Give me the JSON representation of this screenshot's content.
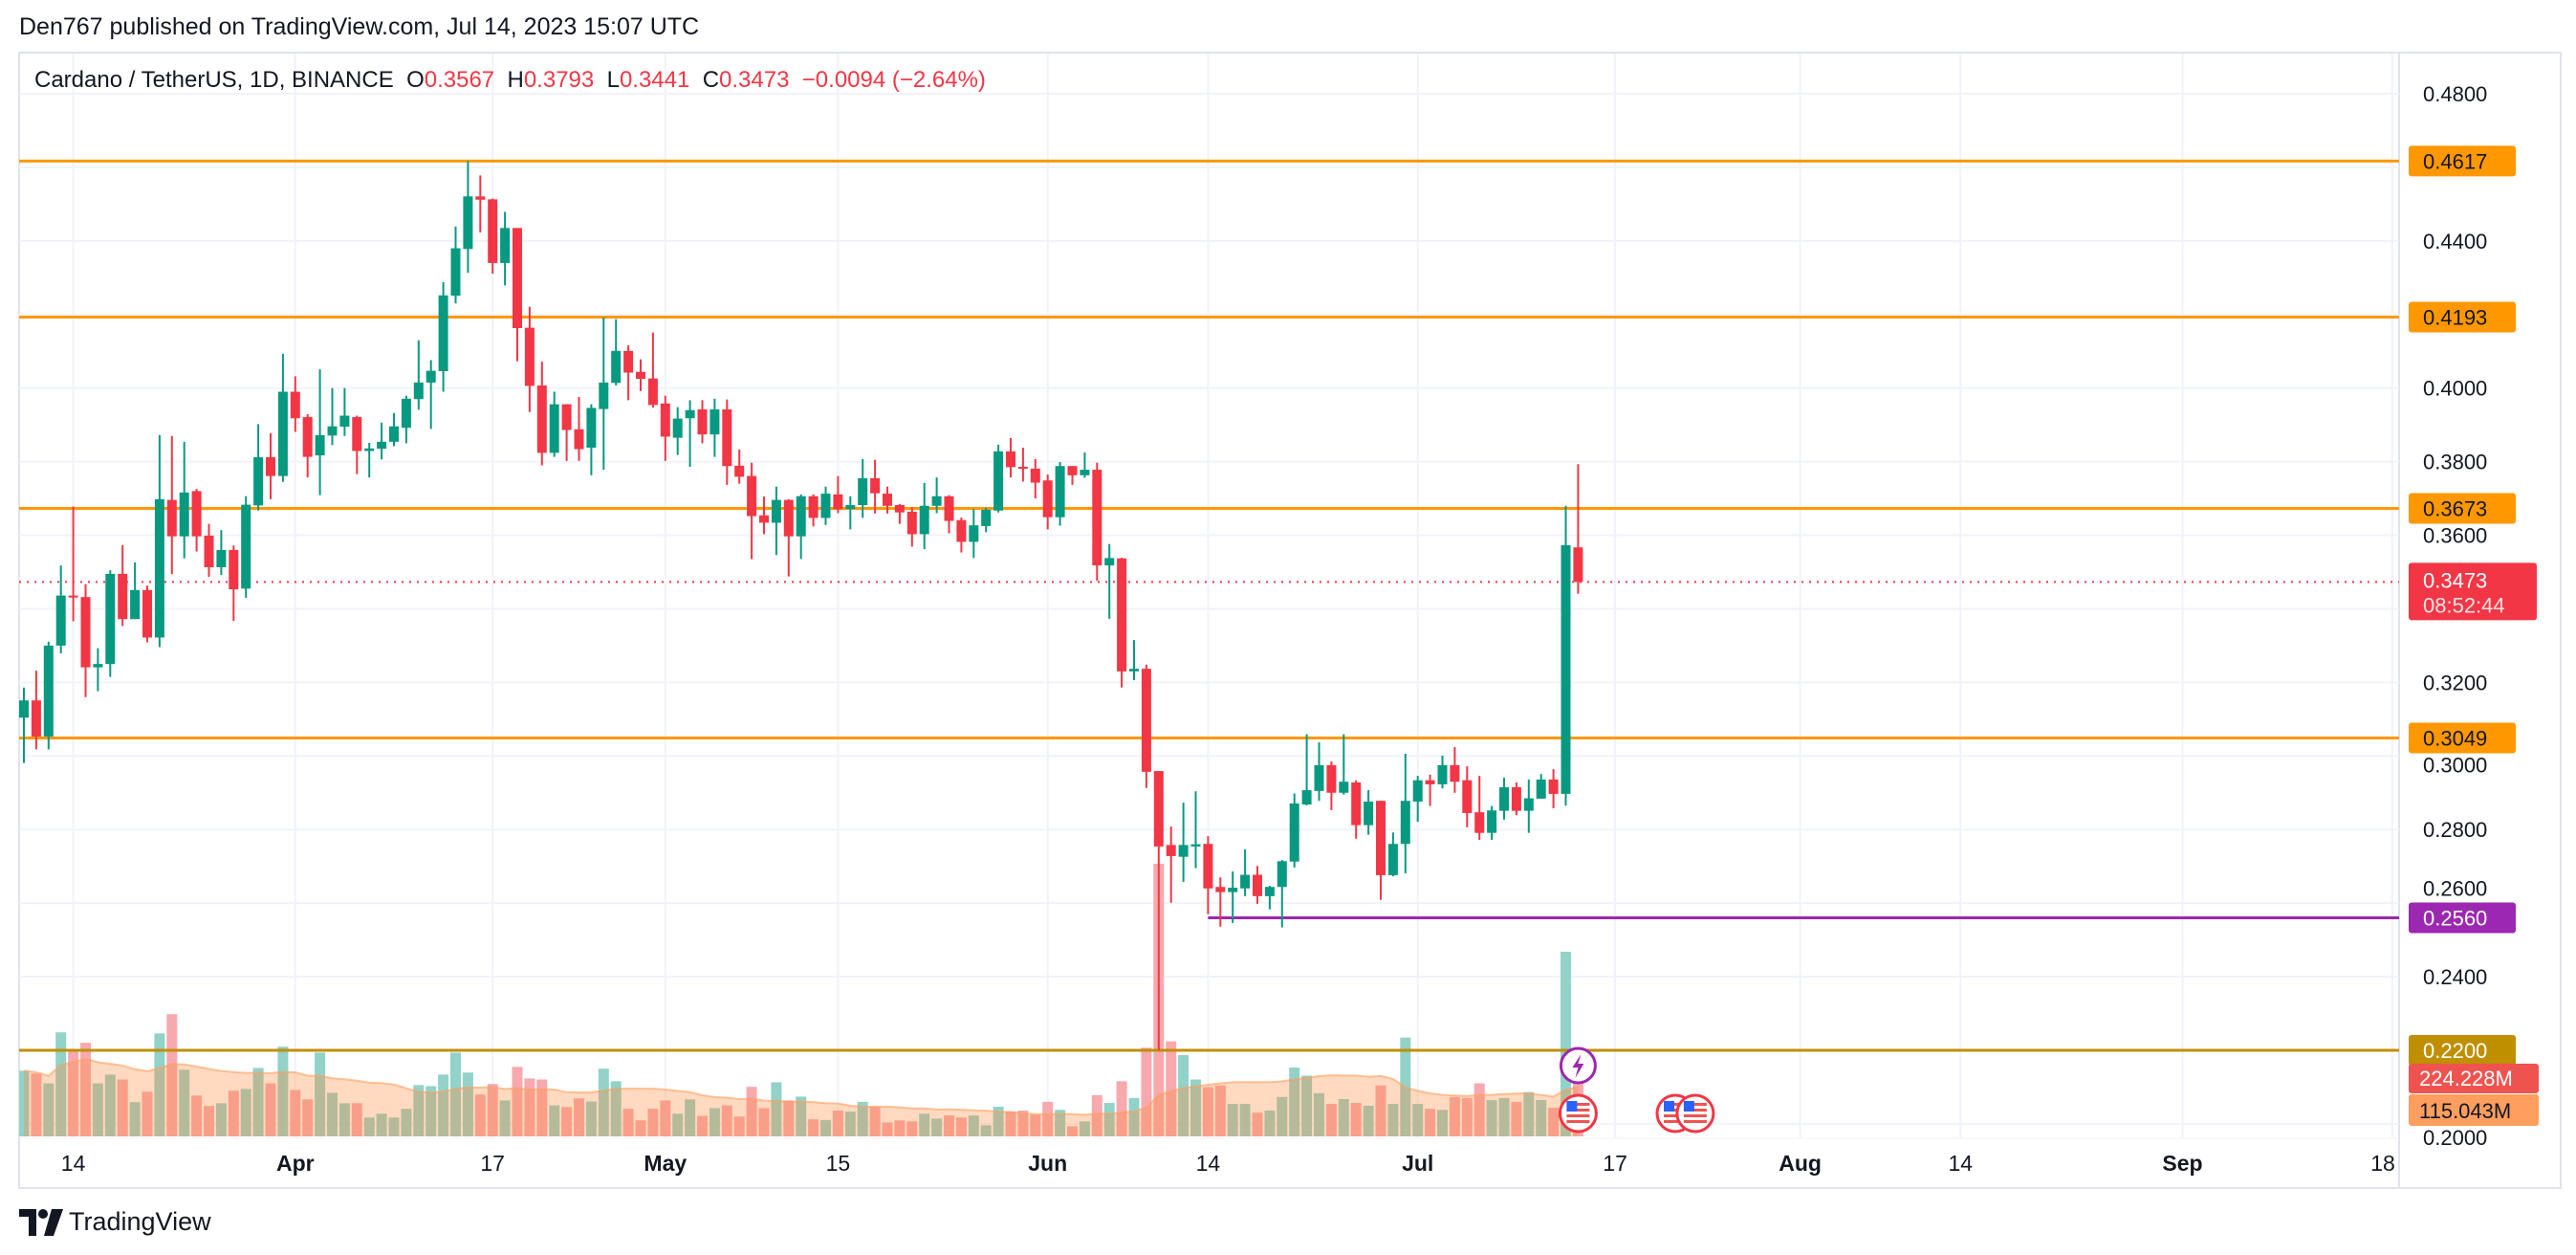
{
  "header": {
    "published": "Den767 published on TradingView.com, Jul 14, 2023 15:07 UTC"
  },
  "legend": {
    "symbol": "Cardano / TetherUS, 1D, BINANCE",
    "o_label": "O",
    "o": "0.3567",
    "h_label": "H",
    "h": "0.3793",
    "l_label": "L",
    "l": "0.3441",
    "c_label": "C",
    "c": "0.3473",
    "change": "−0.0094 (−2.64%)"
  },
  "logo": {
    "text": "TradingView"
  },
  "colors": {
    "up": "#089981",
    "down": "#F23645",
    "vol_up": "#92D2C8",
    "vol_down": "#F7A9AE",
    "level": "#FF9800",
    "support": "#9C27B0",
    "low_level": "#BF8F00",
    "grid": "#F0F3FA",
    "vol_ma": "#FF9E5E"
  },
  "chart_data": {
    "type": "candlestick",
    "symbol": "ADAUSDT",
    "interval": "1D",
    "ylim": [
      0.196,
      0.4877
    ],
    "x_range": [
      "2023-03-10",
      "2023-09-20"
    ],
    "grid": true,
    "price_ticks": [
      "0.4800",
      "0.4400",
      "0.4000",
      "0.3800",
      "0.3600",
      "0.3200",
      "0.3000",
      "0.2800",
      "0.2600",
      "0.2400",
      "0.2000"
    ],
    "time_ticks": [
      {
        "label": "14",
        "date": "2023-03-14",
        "month": false
      },
      {
        "label": "Apr",
        "date": "2023-04-01",
        "month": true
      },
      {
        "label": "17",
        "date": "2023-04-17",
        "month": false
      },
      {
        "label": "May",
        "date": "2023-05-01",
        "month": true
      },
      {
        "label": "15",
        "date": "2023-05-15",
        "month": false
      },
      {
        "label": "Jun",
        "date": "2023-06-01",
        "month": true
      },
      {
        "label": "14",
        "date": "2023-06-14",
        "month": false
      },
      {
        "label": "Jul",
        "date": "2023-07-01",
        "month": true
      },
      {
        "label": "17",
        "date": "2023-07-17",
        "month": false
      },
      {
        "label": "Aug",
        "date": "2023-08-01",
        "month": true
      },
      {
        "label": "14",
        "date": "2023-08-14",
        "month": false
      },
      {
        "label": "Sep",
        "date": "2023-09-01",
        "month": true
      },
      {
        "label": "18",
        "date": "2023-09-18",
        "month": false
      }
    ],
    "levels": [
      {
        "price": 0.4617,
        "label": "0.4617",
        "color": "#FF9800",
        "text_color": "#131722"
      },
      {
        "price": 0.4193,
        "label": "0.4193",
        "color": "#FF9800",
        "text_color": "#131722"
      },
      {
        "price": 0.3673,
        "label": "0.3673",
        "color": "#FF9800",
        "text_color": "#131722"
      },
      {
        "price": 0.3049,
        "label": "0.3049",
        "color": "#FF9800",
        "text_color": "#131722"
      },
      {
        "price": 0.256,
        "label": "0.2560",
        "color": "#9C27B0",
        "text_color": "#ffffff",
        "from": "2023-06-14"
      },
      {
        "price": 0.22,
        "label": "0.2200",
        "color": "#BF8F00",
        "text_color": "#ffffff"
      }
    ],
    "last_price": {
      "price": 0.3473,
      "label": "0.3473",
      "countdown": "08:52:44",
      "color": "#F23645"
    },
    "volume": {
      "last_label": "224.228M",
      "ma_label": "115.043M",
      "unit": "M",
      "ma_length": 20
    },
    "events": [
      {
        "type": "lightning",
        "date": "2023-07-14"
      },
      {
        "type": "us-flag",
        "date": "2023-07-14"
      },
      {
        "type": "us-flag",
        "date": "2023-07-18"
      },
      {
        "type": "us-flag",
        "date": "2023-07-19"
      }
    ],
    "columns": [
      "date",
      "open",
      "high",
      "low",
      "close",
      "volume_M"
    ],
    "candles": [
      [
        "2023-03-10",
        0.3104,
        0.3186,
        0.2981,
        0.3151,
        188
      ],
      [
        "2023-03-11",
        0.3151,
        0.3232,
        0.3018,
        0.3053,
        180
      ],
      [
        "2023-03-12",
        0.3053,
        0.3311,
        0.3018,
        0.33,
        152
      ],
      [
        "2023-03-13",
        0.33,
        0.3518,
        0.3279,
        0.3436,
        298
      ],
      [
        "2023-03-14",
        0.3436,
        0.3678,
        0.3366,
        0.3432,
        248
      ],
      [
        "2023-03-15",
        0.3432,
        0.3467,
        0.316,
        0.3241,
        268
      ],
      [
        "2023-03-16",
        0.3241,
        0.3293,
        0.3176,
        0.325,
        152
      ],
      [
        "2023-03-17",
        0.325,
        0.3505,
        0.3215,
        0.3495,
        177
      ],
      [
        "2023-03-18",
        0.3495,
        0.3573,
        0.3353,
        0.3372,
        163
      ],
      [
        "2023-03-19",
        0.3372,
        0.3526,
        0.3372,
        0.3451,
        98
      ],
      [
        "2023-03-20",
        0.3451,
        0.3463,
        0.3309,
        0.3322,
        128
      ],
      [
        "2023-03-21",
        0.3322,
        0.3872,
        0.3296,
        0.3698,
        295
      ],
      [
        "2023-03-22",
        0.3696,
        0.387,
        0.3494,
        0.3597,
        350
      ],
      [
        "2023-03-23",
        0.3597,
        0.3854,
        0.3537,
        0.3716,
        191
      ],
      [
        "2023-03-24",
        0.372,
        0.3726,
        0.3556,
        0.3597,
        117
      ],
      [
        "2023-03-25",
        0.3599,
        0.3631,
        0.3487,
        0.3513,
        87
      ],
      [
        "2023-03-26",
        0.3513,
        0.3614,
        0.3492,
        0.356,
        95
      ],
      [
        "2023-03-27",
        0.356,
        0.3572,
        0.3367,
        0.3453,
        131
      ],
      [
        "2023-03-28",
        0.3455,
        0.3706,
        0.343,
        0.3683,
        136
      ],
      [
        "2023-03-29",
        0.3681,
        0.3902,
        0.3667,
        0.3812,
        196
      ],
      [
        "2023-03-30",
        0.3812,
        0.3877,
        0.3698,
        0.3761,
        152
      ],
      [
        "2023-03-31",
        0.3761,
        0.4093,
        0.3745,
        0.399,
        257
      ],
      [
        "2023-04-01",
        0.399,
        0.4032,
        0.3881,
        0.3918,
        133
      ],
      [
        "2023-04-02",
        0.3921,
        0.3929,
        0.3757,
        0.3813,
        106
      ],
      [
        "2023-04-03",
        0.3817,
        0.4051,
        0.3709,
        0.3872,
        240
      ],
      [
        "2023-04-04",
        0.3871,
        0.4,
        0.3845,
        0.3896,
        125
      ],
      [
        "2023-04-05",
        0.3895,
        0.4,
        0.387,
        0.3925,
        95
      ],
      [
        "2023-04-06",
        0.3921,
        0.3925,
        0.3766,
        0.3829,
        95
      ],
      [
        "2023-04-07",
        0.3829,
        0.3851,
        0.3757,
        0.3836,
        54
      ],
      [
        "2023-04-08",
        0.3835,
        0.3906,
        0.3806,
        0.3854,
        65
      ],
      [
        "2023-04-09",
        0.3854,
        0.3932,
        0.3842,
        0.3896,
        54
      ],
      [
        "2023-04-10",
        0.3892,
        0.3979,
        0.385,
        0.3971,
        79
      ],
      [
        "2023-04-11",
        0.397,
        0.413,
        0.3941,
        0.4015,
        147
      ],
      [
        "2023-04-12",
        0.4015,
        0.4076,
        0.3889,
        0.4047,
        144
      ],
      [
        "2023-04-13",
        0.4046,
        0.4288,
        0.399,
        0.4252,
        177
      ],
      [
        "2023-04-14",
        0.4251,
        0.4439,
        0.423,
        0.438,
        240
      ],
      [
        "2023-04-15",
        0.4378,
        0.4617,
        0.4313,
        0.4521,
        183
      ],
      [
        "2023-04-16",
        0.4521,
        0.4578,
        0.4423,
        0.4512,
        120
      ],
      [
        "2023-04-17",
        0.4513,
        0.4515,
        0.4311,
        0.434,
        150
      ],
      [
        "2023-04-18",
        0.434,
        0.4479,
        0.4279,
        0.4435,
        103
      ],
      [
        "2023-04-19",
        0.4435,
        0.4435,
        0.4073,
        0.4163,
        199
      ],
      [
        "2023-04-20",
        0.4164,
        0.4221,
        0.3935,
        0.4006,
        166
      ],
      [
        "2023-04-21",
        0.4007,
        0.4072,
        0.379,
        0.3824,
        163
      ],
      [
        "2023-04-22",
        0.3824,
        0.399,
        0.3813,
        0.3956,
        89
      ],
      [
        "2023-04-23",
        0.3956,
        0.3956,
        0.3802,
        0.3886,
        84
      ],
      [
        "2023-04-24",
        0.3888,
        0.3976,
        0.3802,
        0.3834,
        109
      ],
      [
        "2023-04-25",
        0.3838,
        0.3956,
        0.3763,
        0.3946,
        100
      ],
      [
        "2023-04-26",
        0.3943,
        0.4192,
        0.3778,
        0.4015,
        194
      ],
      [
        "2023-04-27",
        0.4014,
        0.4187,
        0.4007,
        0.4101,
        158
      ],
      [
        "2023-04-28",
        0.4101,
        0.4116,
        0.3967,
        0.4042,
        79
      ],
      [
        "2023-04-29",
        0.4044,
        0.4078,
        0.3992,
        0.4025,
        46
      ],
      [
        "2023-04-30",
        0.4026,
        0.4151,
        0.3947,
        0.3954,
        79
      ],
      [
        "2023-05-01",
        0.3958,
        0.3979,
        0.3802,
        0.3868,
        103
      ],
      [
        "2023-05-02",
        0.3865,
        0.3948,
        0.3818,
        0.3917,
        65
      ],
      [
        "2023-05-03",
        0.3918,
        0.3967,
        0.3786,
        0.394,
        106
      ],
      [
        "2023-05-04",
        0.3942,
        0.3967,
        0.385,
        0.3874,
        59
      ],
      [
        "2023-05-05",
        0.3874,
        0.3971,
        0.3813,
        0.3942,
        81
      ],
      [
        "2023-05-06",
        0.3942,
        0.3969,
        0.3737,
        0.3788,
        89
      ],
      [
        "2023-05-07",
        0.3789,
        0.3833,
        0.374,
        0.3759,
        57
      ],
      [
        "2023-05-08",
        0.3761,
        0.3797,
        0.3535,
        0.3652,
        142
      ],
      [
        "2023-05-09",
        0.3654,
        0.3705,
        0.3603,
        0.3634,
        81
      ],
      [
        "2023-05-10",
        0.3634,
        0.3732,
        0.3546,
        0.3696,
        155
      ],
      [
        "2023-05-11",
        0.3696,
        0.3698,
        0.3488,
        0.3597,
        103
      ],
      [
        "2023-05-12",
        0.3597,
        0.3711,
        0.3535,
        0.3706,
        114
      ],
      [
        "2023-05-13",
        0.3706,
        0.3711,
        0.3624,
        0.3647,
        49
      ],
      [
        "2023-05-14",
        0.3647,
        0.3732,
        0.3628,
        0.3713,
        47
      ],
      [
        "2023-05-15",
        0.3711,
        0.3761,
        0.366,
        0.3671,
        74
      ],
      [
        "2023-05-16",
        0.3671,
        0.3706,
        0.3616,
        0.3682,
        71
      ],
      [
        "2023-05-17",
        0.3682,
        0.3807,
        0.3647,
        0.3755,
        99
      ],
      [
        "2023-05-18",
        0.3755,
        0.3805,
        0.3659,
        0.3714,
        85
      ],
      [
        "2023-05-19",
        0.3713,
        0.3732,
        0.3659,
        0.368,
        40
      ],
      [
        "2023-05-20",
        0.3682,
        0.3685,
        0.3631,
        0.3662,
        46
      ],
      [
        "2023-05-21",
        0.3664,
        0.3676,
        0.3569,
        0.3603,
        43
      ],
      [
        "2023-05-22",
        0.3603,
        0.3742,
        0.3562,
        0.368,
        65
      ],
      [
        "2023-05-23",
        0.368,
        0.3757,
        0.366,
        0.3706,
        51
      ],
      [
        "2023-05-24",
        0.3706,
        0.3709,
        0.3605,
        0.3639,
        60
      ],
      [
        "2023-05-25",
        0.3641,
        0.3648,
        0.3553,
        0.3582,
        54
      ],
      [
        "2023-05-26",
        0.3582,
        0.3671,
        0.3538,
        0.3627,
        60
      ],
      [
        "2023-05-27",
        0.3625,
        0.3675,
        0.3608,
        0.3669,
        32
      ],
      [
        "2023-05-28",
        0.3667,
        0.3846,
        0.3662,
        0.3828,
        85
      ],
      [
        "2023-05-29",
        0.3828,
        0.3864,
        0.3757,
        0.3785,
        71
      ],
      [
        "2023-05-30",
        0.3786,
        0.3838,
        0.3746,
        0.3781,
        74
      ],
      [
        "2023-05-31",
        0.3781,
        0.3807,
        0.37,
        0.3743,
        62
      ],
      [
        "2023-06-01",
        0.3749,
        0.3765,
        0.3616,
        0.3649,
        99
      ],
      [
        "2023-06-02",
        0.3649,
        0.3799,
        0.3626,
        0.3788,
        76
      ],
      [
        "2023-06-03",
        0.3788,
        0.3788,
        0.3737,
        0.3763,
        29
      ],
      [
        "2023-06-04",
        0.3763,
        0.3825,
        0.3756,
        0.3778,
        43
      ],
      [
        "2023-06-05",
        0.3778,
        0.3797,
        0.3476,
        0.3518,
        118
      ],
      [
        "2023-06-06",
        0.3518,
        0.3576,
        0.3373,
        0.3538,
        96
      ],
      [
        "2023-06-07",
        0.3537,
        0.3539,
        0.3186,
        0.323,
        158
      ],
      [
        "2023-06-08",
        0.323,
        0.3315,
        0.3206,
        0.3237,
        110
      ],
      [
        "2023-06-09",
        0.3237,
        0.3248,
        0.2913,
        0.2957,
        254
      ],
      [
        "2023-06-10",
        0.2959,
        0.2959,
        0.22,
        0.2754,
        781
      ],
      [
        "2023-06-11",
        0.2758,
        0.2808,
        0.2601,
        0.2728,
        272
      ],
      [
        "2023-06-12",
        0.2726,
        0.2873,
        0.2658,
        0.2758,
        233
      ],
      [
        "2023-06-13",
        0.2754,
        0.2904,
        0.2695,
        0.276,
        163
      ],
      [
        "2023-06-14",
        0.2761,
        0.2782,
        0.257,
        0.264,
        141
      ],
      [
        "2023-06-15",
        0.2644,
        0.267,
        0.2536,
        0.263,
        146
      ],
      [
        "2023-06-16",
        0.263,
        0.2686,
        0.2546,
        0.2642,
        93
      ],
      [
        "2023-06-17",
        0.264,
        0.2746,
        0.2619,
        0.2677,
        93
      ],
      [
        "2023-06-18",
        0.2677,
        0.2701,
        0.2598,
        0.2619,
        68
      ],
      [
        "2023-06-19",
        0.2619,
        0.2647,
        0.2583,
        0.2644,
        74
      ],
      [
        "2023-06-20",
        0.2644,
        0.2717,
        0.2534,
        0.2714,
        113
      ],
      [
        "2023-06-21",
        0.2713,
        0.2898,
        0.2697,
        0.2871,
        197
      ],
      [
        "2023-06-22",
        0.2868,
        0.3059,
        0.2866,
        0.2907,
        174
      ],
      [
        "2023-06-23",
        0.2905,
        0.3037,
        0.2878,
        0.2975,
        124
      ],
      [
        "2023-06-24",
        0.2975,
        0.2985,
        0.2853,
        0.29,
        93
      ],
      [
        "2023-06-25",
        0.29,
        0.3059,
        0.2895,
        0.293,
        107
      ],
      [
        "2023-06-26",
        0.2928,
        0.2934,
        0.2775,
        0.2812,
        96
      ],
      [
        "2023-06-27",
        0.2812,
        0.2907,
        0.2786,
        0.2876,
        88
      ],
      [
        "2023-06-28",
        0.2878,
        0.2878,
        0.2609,
        0.2676,
        146
      ],
      [
        "2023-06-29",
        0.2676,
        0.2792,
        0.2673,
        0.2761,
        93
      ],
      [
        "2023-06-30",
        0.2761,
        0.3006,
        0.2681,
        0.2878,
        283
      ],
      [
        "2023-07-01",
        0.2876,
        0.2946,
        0.2821,
        0.2934,
        93
      ],
      [
        "2023-07-02",
        0.2934,
        0.2949,
        0.2864,
        0.2923,
        79
      ],
      [
        "2023-07-03",
        0.2923,
        0.3001,
        0.2912,
        0.2975,
        76
      ],
      [
        "2023-07-04",
        0.2975,
        0.3024,
        0.29,
        0.293,
        113
      ],
      [
        "2023-07-05",
        0.2934,
        0.2972,
        0.2806,
        0.2845,
        110
      ],
      [
        "2023-07-06",
        0.2847,
        0.2946,
        0.2772,
        0.2791,
        152
      ],
      [
        "2023-07-07",
        0.2791,
        0.2864,
        0.2772,
        0.2852,
        104
      ],
      [
        "2023-07-08",
        0.2851,
        0.2941,
        0.2827,
        0.2915,
        110
      ],
      [
        "2023-07-09",
        0.2915,
        0.2928,
        0.2839,
        0.2851,
        99
      ],
      [
        "2023-07-10",
        0.2851,
        0.2936,
        0.2791,
        0.2885,
        127
      ],
      [
        "2023-07-11",
        0.2884,
        0.2951,
        0.2884,
        0.2936,
        104
      ],
      [
        "2023-07-12",
        0.2936,
        0.2964,
        0.2858,
        0.2897,
        82
      ],
      [
        "2023-07-13",
        0.2897,
        0.368,
        0.2865,
        0.3573,
        529
      ],
      [
        "2023-07-14",
        0.3567,
        0.3793,
        0.3441,
        0.3473,
        224.228
      ]
    ]
  }
}
